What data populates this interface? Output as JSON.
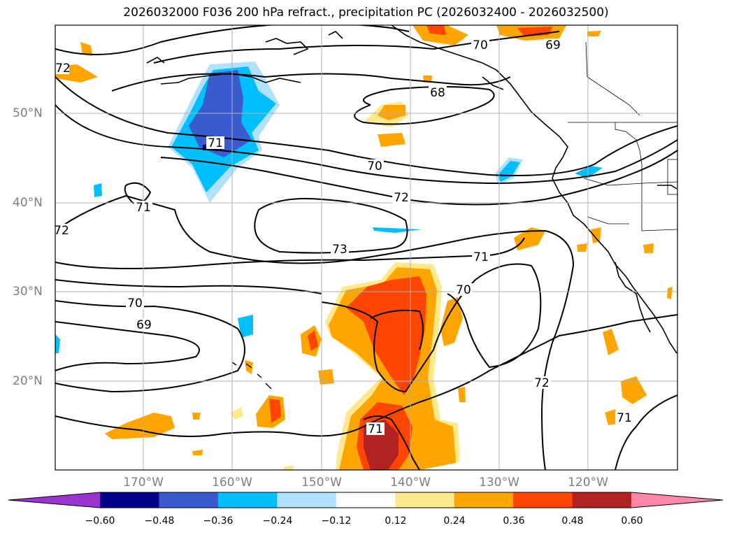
{
  "title": "2026032000 F036 200 hPa refract., precipitation PC (2026032400 - 2026032500)",
  "map": {
    "lat_labels": [
      "50°N",
      "40°N",
      "30°N",
      "20°N"
    ],
    "lon_labels": [
      "170°W",
      "160°W",
      "150°W",
      "140°W",
      "130°W",
      "120°W"
    ],
    "contour_labels": [
      "73",
      "72",
      "71",
      "70",
      "69",
      "68"
    ]
  },
  "colorbar": {
    "ticks": [
      "−0.60",
      "−0.48",
      "−0.36",
      "−0.24",
      "−0.12",
      "0.12",
      "0.24",
      "0.36",
      "0.48",
      "0.60"
    ],
    "colors": [
      "#9a34d0",
      "#00008b",
      "#3a5bd0",
      "#00bfff",
      "#b0e2ff",
      "#ffffff",
      "#ffe98a",
      "#ffa500",
      "#ff4500",
      "#b22222",
      "#ff88aa"
    ]
  }
}
